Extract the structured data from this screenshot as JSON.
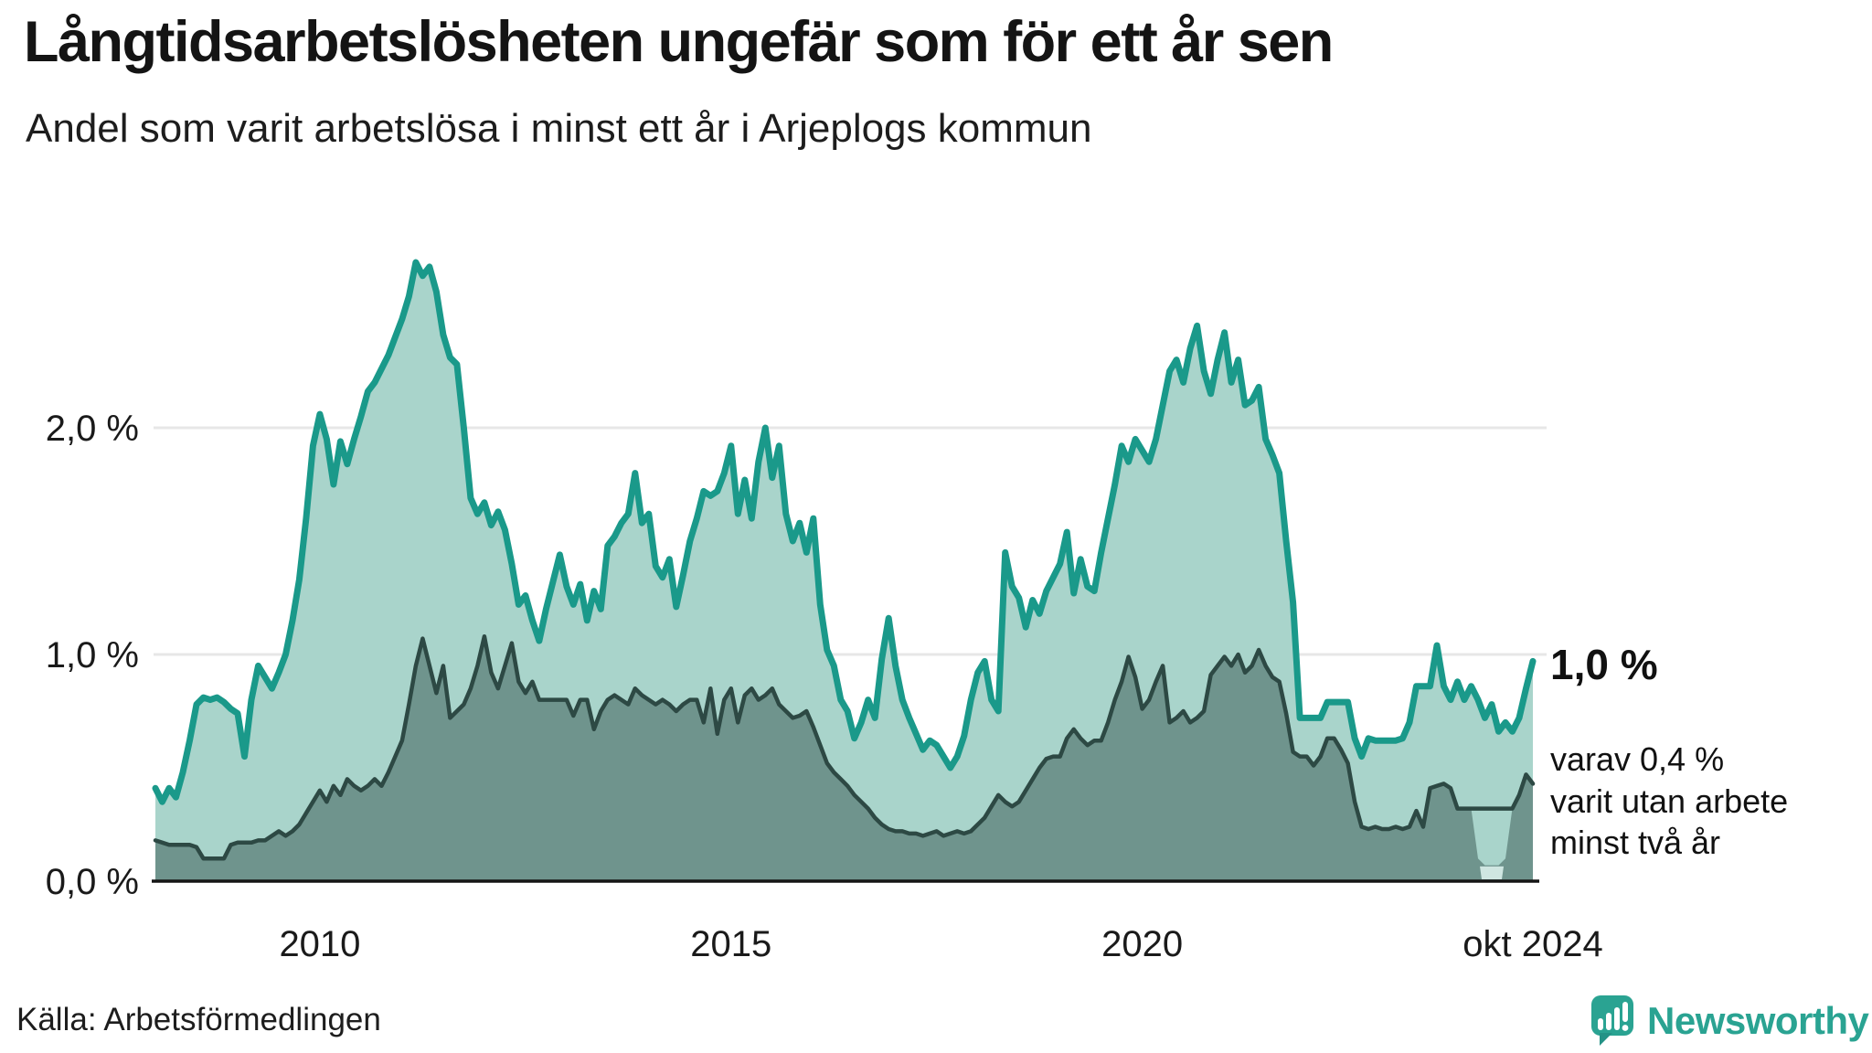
{
  "header": {
    "title": "Långtidsarbetslösheten ungefär som för ett år sen",
    "subtitle": "Andel som varit arbetslösa i minst ett år i Arjeplogs kommun"
  },
  "annotations": {
    "latest_total": "1,0 %",
    "note": "varav 0,4 %\nvarit utan arbete\nminst två år"
  },
  "source": "Källa: Arbetsförmedlingen",
  "logo": {
    "text": "Newsworthy",
    "color": "#2aa392"
  },
  "chart_data": {
    "type": "area",
    "x_unit": "month",
    "x_range": [
      "2008-01",
      "2024-10"
    ],
    "grid": true,
    "legend_position": "none",
    "ylim": [
      0,
      2.9
    ],
    "y_ticks": [
      {
        "label": "0,0 %",
        "value": 0
      },
      {
        "label": "1,0 %",
        "value": 1
      },
      {
        "label": "2,0 %",
        "value": 2
      }
    ],
    "x_ticks": [
      {
        "label": "2010",
        "month_index": 24
      },
      {
        "label": "2015",
        "month_index": 84
      },
      {
        "label": "2020",
        "month_index": 144
      },
      {
        "label": "okt 2024",
        "month_index": 201
      }
    ],
    "series": [
      {
        "name": "Arbetslösa minst ett år",
        "line_color": "#1a998a",
        "fill_color": "#a9d4cb",
        "latest_label": "1,0 %",
        "values": [
          0.41,
          0.35,
          0.41,
          0.37,
          0.48,
          0.62,
          0.78,
          0.81,
          0.8,
          0.81,
          0.79,
          0.76,
          0.74,
          0.55,
          0.8,
          0.95,
          0.9,
          0.85,
          0.92,
          1.0,
          1.15,
          1.33,
          1.6,
          1.92,
          2.06,
          1.95,
          1.75,
          1.94,
          1.84,
          1.95,
          2.05,
          2.16,
          2.2,
          2.26,
          2.32,
          2.4,
          2.48,
          2.58,
          2.73,
          2.67,
          2.71,
          2.6,
          2.41,
          2.31,
          2.28,
          2.0,
          1.69,
          1.62,
          1.67,
          1.57,
          1.63,
          1.55,
          1.4,
          1.22,
          1.26,
          1.15,
          1.06,
          1.2,
          1.32,
          1.44,
          1.3,
          1.22,
          1.31,
          1.15,
          1.28,
          1.2,
          1.48,
          1.52,
          1.58,
          1.62,
          1.8,
          1.58,
          1.62,
          1.39,
          1.34,
          1.42,
          1.21,
          1.35,
          1.5,
          1.6,
          1.72,
          1.7,
          1.72,
          1.8,
          1.92,
          1.62,
          1.77,
          1.6,
          1.85,
          2.0,
          1.78,
          1.92,
          1.62,
          1.5,
          1.58,
          1.45,
          1.6,
          1.22,
          1.02,
          0.95,
          0.8,
          0.75,
          0.63,
          0.7,
          0.8,
          0.72,
          0.98,
          1.16,
          0.95,
          0.8,
          0.72,
          0.65,
          0.58,
          0.62,
          0.6,
          0.55,
          0.5,
          0.55,
          0.64,
          0.8,
          0.92,
          0.97,
          0.8,
          0.75,
          1.45,
          1.3,
          1.25,
          1.12,
          1.24,
          1.18,
          1.28,
          1.34,
          1.4,
          1.54,
          1.27,
          1.42,
          1.3,
          1.28,
          1.45,
          1.6,
          1.75,
          1.92,
          1.85,
          1.95,
          1.9,
          1.85,
          1.95,
          2.1,
          2.25,
          2.3,
          2.2,
          2.35,
          2.45,
          2.25,
          2.15,
          2.3,
          2.42,
          2.2,
          2.3,
          2.1,
          2.12,
          2.18,
          1.95,
          1.88,
          1.8,
          1.5,
          1.23,
          0.72,
          0.72,
          0.72,
          0.72,
          0.79,
          0.79,
          0.79,
          0.79,
          0.63,
          0.55,
          0.63,
          0.62,
          0.62,
          0.62,
          0.62,
          0.63,
          0.7,
          0.86,
          0.86,
          0.86,
          1.04,
          0.86,
          0.8,
          0.88,
          0.8,
          0.86,
          0.8,
          0.72,
          0.78,
          0.66,
          0.7,
          0.66,
          0.72,
          0.85,
          0.97
        ]
      },
      {
        "name": "Utan arbete minst två år",
        "line_color": "#2d4944",
        "fill_color": "#6f948d",
        "latest_label": "0,4 %",
        "fill_gap_months": [
          193,
          197
        ],
        "values": [
          0.18,
          0.17,
          0.16,
          0.16,
          0.16,
          0.16,
          0.15,
          0.1,
          0.1,
          0.1,
          0.1,
          0.16,
          0.17,
          0.17,
          0.17,
          0.18,
          0.18,
          0.2,
          0.22,
          0.2,
          0.22,
          0.25,
          0.3,
          0.35,
          0.4,
          0.35,
          0.42,
          0.38,
          0.45,
          0.42,
          0.4,
          0.42,
          0.45,
          0.42,
          0.48,
          0.55,
          0.62,
          0.78,
          0.95,
          1.07,
          0.95,
          0.83,
          0.95,
          0.72,
          0.75,
          0.78,
          0.85,
          0.95,
          1.08,
          0.92,
          0.85,
          0.95,
          1.05,
          0.88,
          0.83,
          0.88,
          0.8,
          0.8,
          0.8,
          0.8,
          0.8,
          0.73,
          0.8,
          0.8,
          0.67,
          0.75,
          0.8,
          0.82,
          0.8,
          0.78,
          0.85,
          0.82,
          0.8,
          0.78,
          0.8,
          0.78,
          0.75,
          0.78,
          0.8,
          0.8,
          0.7,
          0.85,
          0.65,
          0.8,
          0.85,
          0.7,
          0.82,
          0.85,
          0.8,
          0.82,
          0.85,
          0.78,
          0.75,
          0.72,
          0.73,
          0.75,
          0.68,
          0.6,
          0.52,
          0.48,
          0.45,
          0.42,
          0.38,
          0.35,
          0.32,
          0.28,
          0.25,
          0.23,
          0.22,
          0.22,
          0.21,
          0.21,
          0.2,
          0.21,
          0.22,
          0.2,
          0.21,
          0.22,
          0.21,
          0.22,
          0.25,
          0.28,
          0.33,
          0.38,
          0.35,
          0.33,
          0.35,
          0.4,
          0.45,
          0.5,
          0.54,
          0.55,
          0.55,
          0.63,
          0.67,
          0.63,
          0.6,
          0.62,
          0.62,
          0.7,
          0.8,
          0.88,
          0.99,
          0.9,
          0.76,
          0.8,
          0.88,
          0.95,
          0.7,
          0.72,
          0.75,
          0.7,
          0.72,
          0.75,
          0.91,
          0.95,
          0.99,
          0.95,
          1.0,
          0.92,
          0.95,
          1.02,
          0.95,
          0.9,
          0.88,
          0.74,
          0.57,
          0.55,
          0.55,
          0.51,
          0.55,
          0.63,
          0.63,
          0.58,
          0.52,
          0.35,
          0.24,
          0.23,
          0.24,
          0.23,
          0.23,
          0.24,
          0.23,
          0.24,
          0.31,
          0.24,
          0.41,
          0.42,
          0.43,
          0.41,
          0.32,
          0.32,
          0.32,
          0.32,
          0.32,
          0.32,
          0.32,
          0.32,
          0.32,
          0.38,
          0.47,
          0.43
        ]
      }
    ],
    "colors": {
      "gridline": "#e7e7e7",
      "baseline": "#151515",
      "gap_notch": "#cfe6e1",
      "text": "#1a1a1a"
    }
  }
}
